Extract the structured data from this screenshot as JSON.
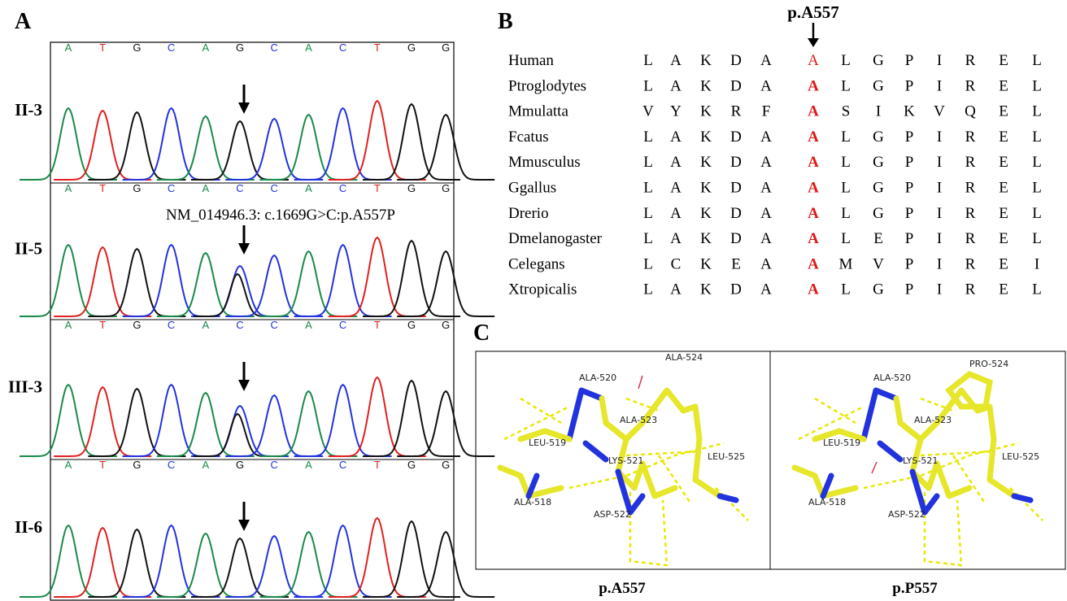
{
  "panel_a": {
    "label": "A",
    "tracks": [
      {
        "name": "II-3",
        "bases": [
          "A",
          "T",
          "G",
          "C",
          "A",
          "G",
          "C",
          "A",
          "C",
          "T",
          "G",
          "G"
        ]
      },
      {
        "name": "II-5",
        "bases": [
          "A",
          "T",
          "G",
          "C",
          "A",
          "C",
          "C",
          "A",
          "C",
          "T",
          "G",
          "G"
        ],
        "annotation": "NM_014946.3: c.1669G>C:p.A557P"
      },
      {
        "name": "III-3",
        "bases": [
          "A",
          "T",
          "G",
          "C",
          "A",
          "C",
          "C",
          "A",
          "C",
          "T",
          "G",
          "G"
        ]
      },
      {
        "name": "II-6",
        "bases": [
          "A",
          "T",
          "G",
          "C",
          "A",
          "G",
          "C",
          "A",
          "C",
          "T",
          "G",
          "G"
        ]
      }
    ]
  },
  "panel_b": {
    "label": "B",
    "marker": "p.A557",
    "rows": [
      {
        "species": "Human",
        "residues": [
          "L",
          "A",
          "K",
          "D",
          "A",
          "A",
          "L",
          "G",
          "P",
          "I",
          "R",
          "E",
          "L"
        ]
      },
      {
        "species": "Ptroglodytes",
        "residues": [
          "L",
          "A",
          "K",
          "D",
          "A",
          "A",
          "L",
          "G",
          "P",
          "I",
          "R",
          "E",
          "L"
        ]
      },
      {
        "species": "Mmulatta",
        "residues": [
          "V",
          "Y",
          "K",
          "R",
          "F",
          "A",
          "S",
          "I",
          "K",
          "V",
          "Q",
          "E",
          "L"
        ]
      },
      {
        "species": "Fcatus",
        "residues": [
          "L",
          "A",
          "K",
          "D",
          "A",
          "A",
          "L",
          "G",
          "P",
          "I",
          "R",
          "E",
          "L"
        ]
      },
      {
        "species": "Mmusculus",
        "residues": [
          "L",
          "A",
          "K",
          "D",
          "A",
          "A",
          "L",
          "G",
          "P",
          "I",
          "R",
          "E",
          "L"
        ]
      },
      {
        "species": "Ggallus",
        "residues": [
          "L",
          "A",
          "K",
          "D",
          "A",
          "A",
          "L",
          "G",
          "P",
          "I",
          "R",
          "E",
          "L"
        ]
      },
      {
        "species": "Drerio",
        "residues": [
          "L",
          "A",
          "K",
          "D",
          "A",
          "A",
          "L",
          "G",
          "P",
          "I",
          "R",
          "E",
          "L"
        ]
      },
      {
        "species": "Dmelanogaster",
        "residues": [
          "L",
          "A",
          "K",
          "D",
          "A",
          "A",
          "L",
          "E",
          "P",
          "I",
          "R",
          "E",
          "L"
        ]
      },
      {
        "species": "Celegans",
        "residues": [
          "L",
          "C",
          "K",
          "E",
          "A",
          "A",
          "M",
          "V",
          "P",
          "I",
          "R",
          "E",
          "I"
        ]
      },
      {
        "species": "Xtropicalis",
        "residues": [
          "L",
          "A",
          "K",
          "D",
          "A",
          "A",
          "L",
          "G",
          "P",
          "I",
          "R",
          "E",
          "L"
        ]
      }
    ]
  },
  "panel_c": {
    "label": "C",
    "structures": [
      {
        "caption": "p.A557",
        "residues": [
          "ALA-520",
          "ALA-524",
          "ALA-523",
          "LEU-519",
          "LYS-521",
          "LEU-525",
          "ALA-518",
          "ASP-522"
        ]
      },
      {
        "caption": "p.P557",
        "residues": [
          "ALA-520",
          "PRO-524",
          "ALA-523",
          "LEU-519",
          "LYS-521",
          "LEU-525",
          "ALA-518",
          "ASP-522"
        ]
      }
    ]
  }
}
